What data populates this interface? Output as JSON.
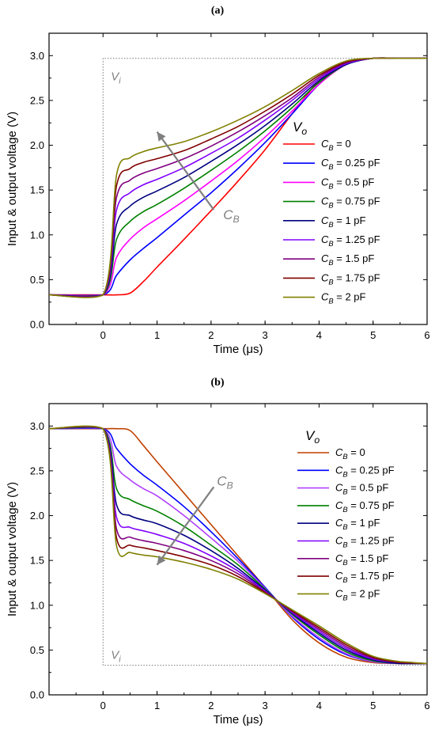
{
  "chart_data": [
    {
      "panel_label": "(a)",
      "type": "line",
      "xlabel": "Time (μs)",
      "ylabel": "Input & output voltage (V)",
      "xlim": [
        -1,
        6
      ],
      "ylim": [
        0,
        3.25
      ],
      "xticks": [
        0,
        1,
        2,
        3,
        4,
        5,
        6
      ],
      "yticks": [
        0.0,
        0.5,
        1.0,
        1.5,
        2.0,
        2.5,
        3.0
      ],
      "xtick_labels": [
        "0",
        "1",
        "2",
        "3",
        "4",
        "5",
        "6"
      ],
      "ytick_labels": [
        "0.0",
        "0.5",
        "1.0",
        "1.5",
        "2.0",
        "2.5",
        "3.0"
      ],
      "input_label": {
        "main": "V",
        "sub": "i"
      },
      "input_signal": {
        "x": [
          -1,
          0,
          0,
          6
        ],
        "y": [
          2.97,
          2.97,
          2.97,
          2.97
        ]
      },
      "input_dotted": {
        "x": [
          0,
          0,
          6
        ],
        "y": [
          0.33,
          2.97,
          2.97
        ]
      },
      "legend_title": {
        "main": "V",
        "sub": "o"
      },
      "legend_position": "center-right",
      "arrow_label": {
        "main": "C",
        "sub": "B"
      },
      "arrow": {
        "from": [
          2.05,
          1.28
        ],
        "to": [
          1.0,
          2.15
        ]
      },
      "x": [
        -1,
        0,
        0.25,
        0.5,
        0.75,
        1,
        1.5,
        2,
        2.5,
        3,
        3.5,
        4,
        4.5,
        5,
        5.5,
        6
      ],
      "series": [
        {
          "label": {
            "main": "C",
            "sub": "B",
            "rest": " = 0"
          },
          "color": "#ff0000",
          "values": [
            0.33,
            0.33,
            0.33,
            0.35,
            0.48,
            0.64,
            0.95,
            1.27,
            1.6,
            1.95,
            2.35,
            2.72,
            2.93,
            2.97,
            2.97,
            2.97
          ]
        },
        {
          "label": {
            "main": "C",
            "sub": "B",
            "rest": " = 0.25 pF"
          },
          "color": "#0000ff",
          "values": [
            0.33,
            0.33,
            0.55,
            0.72,
            0.85,
            0.97,
            1.22,
            1.47,
            1.74,
            2.03,
            2.35,
            2.68,
            2.91,
            2.97,
            2.97,
            2.97
          ]
        },
        {
          "label": {
            "main": "C",
            "sub": "B",
            "rest": " = 0.5 pF"
          },
          "color": "#ff00ff",
          "values": [
            0.33,
            0.33,
            0.75,
            0.95,
            1.08,
            1.18,
            1.38,
            1.6,
            1.83,
            2.09,
            2.38,
            2.68,
            2.9,
            2.97,
            2.97,
            2.97
          ]
        },
        {
          "label": {
            "main": "C",
            "sub": "B",
            "rest": " = 0.75 pF"
          },
          "color": "#008000",
          "values": [
            0.33,
            0.33,
            0.95,
            1.15,
            1.26,
            1.34,
            1.52,
            1.72,
            1.93,
            2.16,
            2.42,
            2.7,
            2.9,
            2.97,
            2.97,
            2.97
          ]
        },
        {
          "label": {
            "main": "C",
            "sub": "B",
            "rest": " = 1 pF"
          },
          "color": "#000080",
          "values": [
            0.33,
            0.33,
            1.12,
            1.32,
            1.42,
            1.49,
            1.64,
            1.82,
            2.01,
            2.22,
            2.46,
            2.72,
            2.9,
            2.97,
            2.97,
            2.97
          ]
        },
        {
          "label": {
            "main": "C",
            "sub": "B",
            "rest": " = 1.25 pF"
          },
          "color": "#8000ff",
          "values": [
            0.33,
            0.33,
            1.28,
            1.47,
            1.56,
            1.62,
            1.75,
            1.91,
            2.08,
            2.28,
            2.5,
            2.74,
            2.91,
            2.97,
            2.97,
            2.97
          ]
        },
        {
          "label": {
            "main": "C",
            "sub": "B",
            "rest": " = 1.5 pF"
          },
          "color": "#800080",
          "values": [
            0.33,
            0.33,
            1.42,
            1.61,
            1.69,
            1.74,
            1.85,
            1.99,
            2.15,
            2.33,
            2.53,
            2.76,
            2.92,
            2.97,
            2.97,
            2.97
          ]
        },
        {
          "label": {
            "main": "C",
            "sub": "B",
            "rest": " = 1.75 pF"
          },
          "color": "#800000",
          "values": [
            0.33,
            0.33,
            1.55,
            1.74,
            1.81,
            1.85,
            1.94,
            2.07,
            2.21,
            2.38,
            2.57,
            2.78,
            2.93,
            2.97,
            2.97,
            2.97
          ]
        },
        {
          "label": {
            "main": "C",
            "sub": "B",
            "rest": " = 2 pF"
          },
          "color": "#808000",
          "values": [
            0.33,
            0.33,
            1.67,
            1.86,
            1.93,
            1.97,
            2.04,
            2.15,
            2.28,
            2.43,
            2.61,
            2.8,
            2.94,
            2.97,
            2.97,
            2.97
          ]
        }
      ]
    },
    {
      "panel_label": "(b)",
      "type": "line",
      "xlabel": "Time (μs)",
      "ylabel": "Input & output voltage (V)",
      "xlim": [
        -1,
        6
      ],
      "ylim": [
        0,
        3.25
      ],
      "xticks": [
        0,
        1,
        2,
        3,
        4,
        5,
        6
      ],
      "yticks": [
        0.0,
        0.5,
        1.0,
        1.5,
        2.0,
        2.5,
        3.0
      ],
      "xtick_labels": [
        "0",
        "1",
        "2",
        "3",
        "4",
        "5",
        "6"
      ],
      "ytick_labels": [
        "0.0",
        "0.5",
        "1.0",
        "1.5",
        "2.0",
        "2.5",
        "3.0"
      ],
      "input_label": {
        "main": "V",
        "sub": "i"
      },
      "input_dotted": {
        "x": [
          0,
          0,
          6
        ],
        "y": [
          2.97,
          0.33,
          0.33
        ]
      },
      "legend_title": {
        "main": "V",
        "sub": "o"
      },
      "legend_position": "right",
      "arrow_label": {
        "main": "C",
        "sub": "B"
      },
      "arrow": {
        "from": [
          2.05,
          2.32
        ],
        "to": [
          1.0,
          1.45
        ]
      },
      "x": [
        -1,
        0,
        0.25,
        0.5,
        0.75,
        1,
        1.5,
        2,
        2.5,
        3,
        3.5,
        4,
        4.5,
        5,
        5.5,
        6
      ],
      "series": [
        {
          "label": {
            "main": "C",
            "sub": "B",
            "rest": " = 0"
          },
          "color": "#c04000",
          "values": [
            2.97,
            2.97,
            2.97,
            2.95,
            2.78,
            2.6,
            2.25,
            1.9,
            1.55,
            1.2,
            0.84,
            0.58,
            0.42,
            0.36,
            0.35,
            0.35
          ]
        },
        {
          "label": {
            "main": "C",
            "sub": "B",
            "rest": " = 0.25 pF"
          },
          "color": "#0000ff",
          "values": [
            2.97,
            2.97,
            2.75,
            2.58,
            2.45,
            2.34,
            2.1,
            1.82,
            1.52,
            1.2,
            0.87,
            0.62,
            0.45,
            0.37,
            0.35,
            0.35
          ]
        },
        {
          "label": {
            "main": "C",
            "sub": "B",
            "rest": " = 0.5 pF"
          },
          "color": "#b040ff",
          "values": [
            2.97,
            2.97,
            2.55,
            2.4,
            2.3,
            2.22,
            2.0,
            1.75,
            1.49,
            1.19,
            0.88,
            0.64,
            0.46,
            0.37,
            0.35,
            0.35
          ]
        },
        {
          "label": {
            "main": "C",
            "sub": "B",
            "rest": " = 0.75 pF"
          },
          "color": "#008000",
          "values": [
            2.97,
            2.97,
            2.3,
            2.18,
            2.11,
            2.05,
            1.88,
            1.67,
            1.45,
            1.18,
            0.9,
            0.67,
            0.48,
            0.38,
            0.35,
            0.35
          ]
        },
        {
          "label": {
            "main": "C",
            "sub": "B",
            "rest": " = 1 pF"
          },
          "color": "#000080",
          "values": [
            2.97,
            2.97,
            2.12,
            2.0,
            1.95,
            1.91,
            1.78,
            1.61,
            1.41,
            1.17,
            0.91,
            0.69,
            0.5,
            0.39,
            0.35,
            0.35
          ]
        },
        {
          "label": {
            "main": "C",
            "sub": "B",
            "rest": " = 1.25 pF"
          },
          "color": "#8000ff",
          "values": [
            2.97,
            2.97,
            1.98,
            1.87,
            1.83,
            1.79,
            1.69,
            1.55,
            1.38,
            1.16,
            0.92,
            0.71,
            0.52,
            0.4,
            0.36,
            0.35
          ]
        },
        {
          "label": {
            "main": "C",
            "sub": "B",
            "rest": " = 1.5 pF"
          },
          "color": "#800080",
          "values": [
            2.97,
            2.97,
            1.85,
            1.76,
            1.72,
            1.69,
            1.61,
            1.5,
            1.35,
            1.15,
            0.93,
            0.73,
            0.54,
            0.41,
            0.36,
            0.35
          ]
        },
        {
          "label": {
            "main": "C",
            "sub": "B",
            "rest": " = 1.75 pF"
          },
          "color": "#800000",
          "values": [
            2.97,
            2.97,
            1.75,
            1.67,
            1.64,
            1.61,
            1.54,
            1.45,
            1.32,
            1.14,
            0.94,
            0.75,
            0.56,
            0.42,
            0.36,
            0.35
          ]
        },
        {
          "label": {
            "main": "C",
            "sub": "B",
            "rest": " = 2 pF"
          },
          "color": "#808000",
          "values": [
            2.97,
            2.97,
            1.66,
            1.59,
            1.56,
            1.54,
            1.48,
            1.4,
            1.29,
            1.13,
            0.95,
            0.77,
            0.58,
            0.43,
            0.37,
            0.35
          ]
        }
      ]
    }
  ]
}
